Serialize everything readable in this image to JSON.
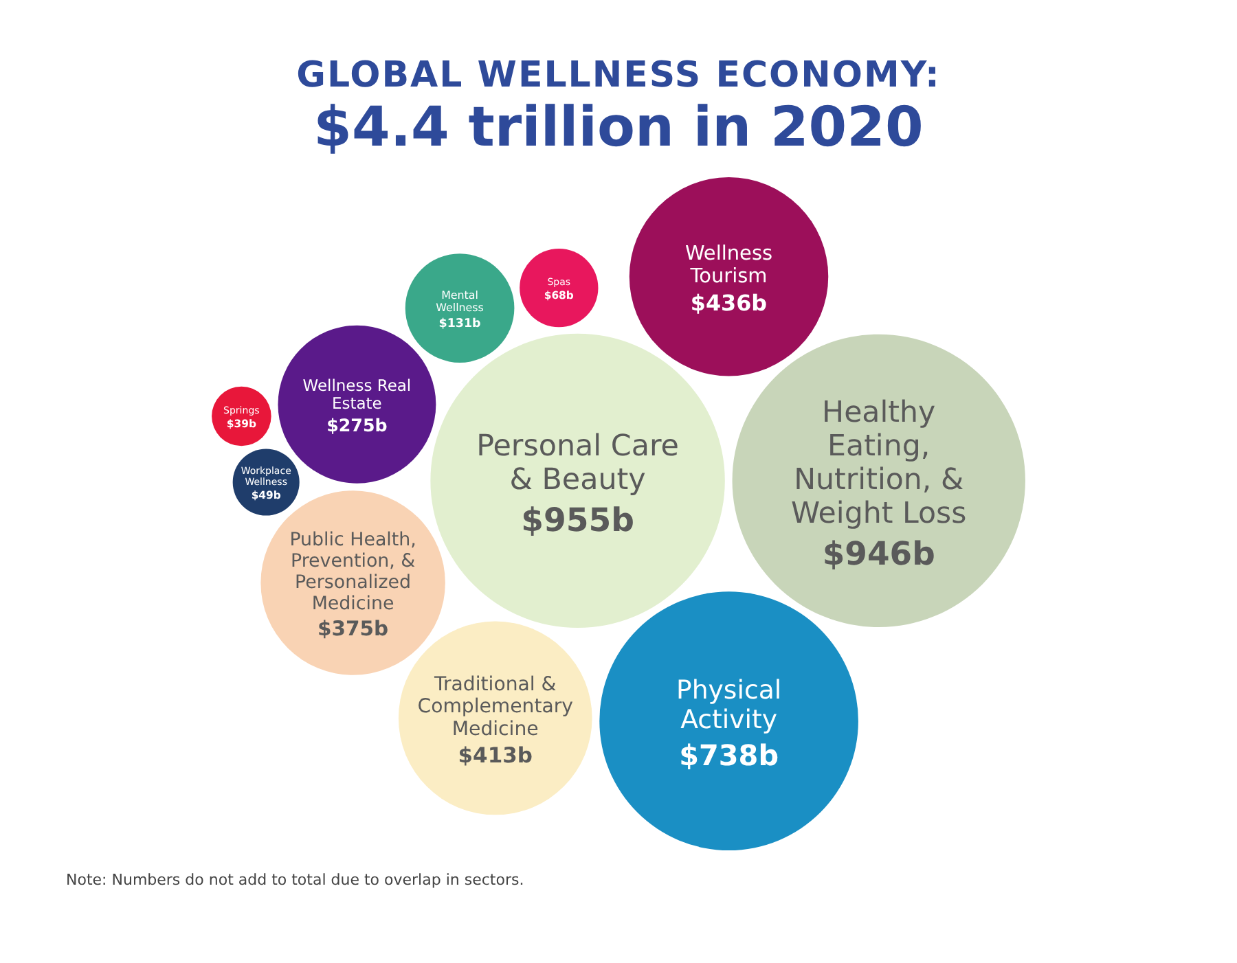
{
  "chart_data": {
    "type": "other",
    "title": "GLOBAL WELLNESS ECONOMY:",
    "subtitle": "$4.4 trillion in 2020",
    "categories": [
      "Personal Care & Beauty",
      "Healthy Eating, Nutrition, & Weight Loss",
      "Physical Activity",
      "Wellness Tourism",
      "Traditional & Complementary Medicine",
      "Public Health, Prevention, & Personalized Medicine",
      "Wellness Real Estate",
      "Mental Wellness",
      "Spas",
      "Workplace Wellness",
      "Springs"
    ],
    "values": [
      955,
      946,
      738,
      436,
      413,
      375,
      275,
      131,
      68,
      49,
      39
    ],
    "value_labels": [
      "$955b",
      "$946b",
      "$738b",
      "$436b",
      "$413b",
      "$375b",
      "$275b",
      "$131b",
      "$68b",
      "$49b",
      "$39b"
    ],
    "colors": [
      "#e2efcf",
      "#c8d5b9",
      "#1a8fc4",
      "#9c0f5a",
      "#fbedc4",
      "#f9d3b4",
      "#5a1a8a",
      "#3aa88a",
      "#e8175d",
      "#1f3d6b",
      "#e8173a"
    ],
    "annotations": [
      "Note: Numbers do not add to total due to overlap in sectors."
    ]
  }
}
